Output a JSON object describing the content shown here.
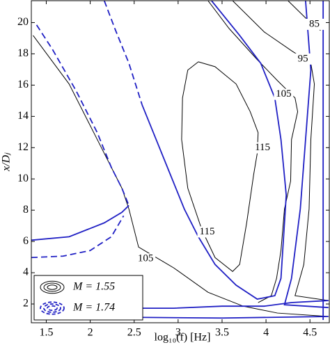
{
  "chart_data": {
    "type": "contour",
    "x_label": "log₁₀(f) [Hz]",
    "y_label": "x/Dⱼ",
    "xlim": [
      1.33,
      4.72
    ],
    "ylim": [
      0.8,
      21.4
    ],
    "xticks": [
      1.5,
      2,
      2.5,
      3,
      3.5,
      4,
      4.5
    ],
    "yticks": [
      2,
      4,
      6,
      8,
      10,
      12,
      14,
      16,
      18,
      20
    ],
    "series": [
      {
        "name": "M = 1.55",
        "color": "#000000",
        "width": 1,
        "lines": [
          {
            "dashed": false,
            "x": [
              1.35,
              1.76,
              2.08,
              2.36,
              2.44,
              2.55,
              2.95,
              3.34,
              3.74,
              4.13,
              4.71
            ],
            "y": [
              19.18,
              16.07,
              12.52,
              9.41,
              8.08,
              5.64,
              4.31,
              2.75,
              1.86,
              1.42,
              1.2
            ]
          },
          {
            "dashed": false,
            "x": [
              3.23,
              3.11,
              3.05,
              3.04,
              3.11,
              3.27,
              3.42,
              3.62,
              3.7,
              3.78,
              3.86,
              3.9,
              3.91,
              3.82,
              3.66,
              3.42,
              3.23
            ],
            "y": [
              17.49,
              16.96,
              15.18,
              12.52,
              9.41,
              6.75,
              4.97,
              4.08,
              4.53,
              7.19,
              10.3,
              11.63,
              12.96,
              14.3,
              16.07,
              17.18,
              17.49
            ]
          },
          {
            "dashed": false,
            "x": [
              3.34,
              3.58,
              3.9,
              4.13,
              4.33,
              4.36,
              4.29,
              4.28,
              4.21,
              4.17,
              4.12,
              4.06,
              3.91
            ],
            "y": [
              21.4,
              19.62,
              17.63,
              16.29,
              15.18,
              14.3,
              12.52,
              9.86,
              8.08,
              5.42,
              3.64,
              2.53,
              2.09
            ]
          },
          {
            "dashed": false,
            "x": [
              3.62,
              3.98,
              4.29,
              4.51,
              4.55,
              4.51,
              4.49,
              4.43,
              4.33,
              4.71
            ],
            "y": [
              21.4,
              19.4,
              18.2,
              17.4,
              16.07,
              12.52,
              8.08,
              4.53,
              2.53,
              2.22
            ]
          },
          {
            "dashed": false,
            "x": [
              4.25,
              4.45,
              4.62
            ],
            "y": [
              21.4,
              20.3,
              19.5
            ]
          }
        ]
      },
      {
        "name": "M = 1.74",
        "color": "#1f1fc4",
        "width": 1.8,
        "lines": [
          {
            "dashed": true,
            "x": [
              2.16,
              2.28,
              2.44,
              2.59
            ],
            "y": [
              21.4,
              19.62,
              17.4,
              14.74
            ]
          },
          {
            "dashed": false,
            "x": [
              2.59,
              2.75,
              2.91,
              3.07,
              3.23,
              3.42,
              3.66,
              3.9,
              4.1,
              4.17,
              4.2,
              4.23,
              4.17,
              4.1,
              3.94,
              3.7,
              3.38
            ],
            "y": [
              14.74,
              12.52,
              10.3,
              8.08,
              6.3,
              4.53,
              3.2,
              2.31,
              2.53,
              3.64,
              6.3,
              8.97,
              12.52,
              15.18,
              17.4,
              19.18,
              21.4
            ]
          },
          {
            "dashed": true,
            "x": [
              1.39,
              1.57,
              1.84,
              2.08,
              2.24,
              2.36,
              2.44
            ],
            "y": [
              19.85,
              18.29,
              15.63,
              12.96,
              10.74,
              9.41,
              8.3
            ]
          },
          {
            "dashed": false,
            "x": [
              1.33,
              1.76,
              2.16,
              2.36,
              2.44
            ],
            "y": [
              6.08,
              6.3,
              7.19,
              7.86,
              8.3
            ]
          },
          {
            "dashed": true,
            "x": [
              1.33,
              1.69,
              2.0,
              2.24,
              2.38
            ],
            "y": [
              4.97,
              5.06,
              5.42,
              6.3,
              7.64
            ]
          },
          {
            "dashed": false,
            "x": [
              1.37,
              2.16,
              2.95,
              3.5,
              3.98,
              4.29,
              4.71
            ],
            "y": [
              1.95,
              1.73,
              1.73,
              1.86,
              1.86,
              2.09,
              2.22
            ]
          },
          {
            "dashed": false,
            "x": [
              1.37,
              3.5,
              4.71
            ],
            "y": [
              1.2,
              1.1,
              1.2
            ]
          },
          {
            "dashed": false,
            "x": [
              4.45,
              4.51,
              4.45,
              4.39,
              4.29,
              4.21,
              4.71
            ],
            "y": [
              21.4,
              16.96,
              12.52,
              8.08,
              3.64,
              1.95,
              1.77
            ]
          },
          {
            "dashed": false,
            "x": [
              4.65,
              4.65
            ],
            "y": [
              21.4,
              0.98
            ]
          }
        ]
      }
    ],
    "contour_labels": [
      {
        "level": 85,
        "x": 4.55,
        "y": 19.89
      },
      {
        "level": 95,
        "x": 4.42,
        "y": 17.67
      },
      {
        "level": 105,
        "x": 4.2,
        "y": 15.41
      },
      {
        "level": 115,
        "x": 3.96,
        "y": 11.99
      },
      {
        "level": 115,
        "x": 3.33,
        "y": 6.61
      },
      {
        "level": 105,
        "x": 2.63,
        "y": 4.88
      }
    ]
  }
}
